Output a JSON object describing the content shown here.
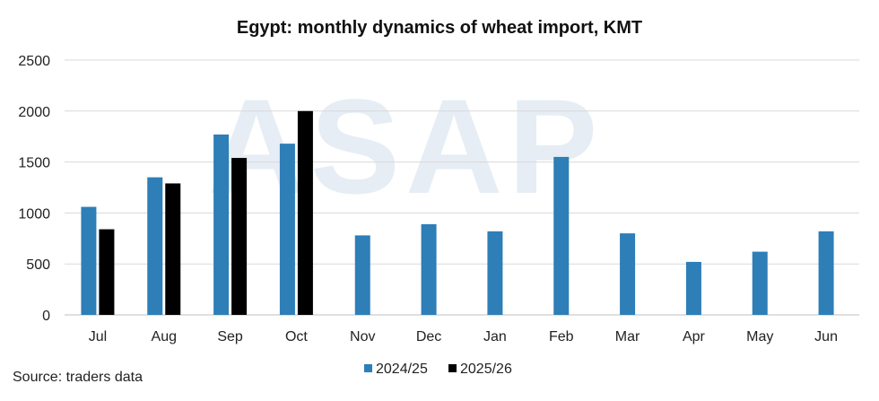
{
  "chart_data": {
    "type": "bar",
    "title": "Egypt: monthly dynamics of wheat import, KMT",
    "xlabel": "",
    "ylabel": "",
    "categories": [
      "Jul",
      "Aug",
      "Sep",
      "Oct",
      "Nov",
      "Dec",
      "Jan",
      "Feb",
      "Mar",
      "Apr",
      "May",
      "Jun"
    ],
    "series": [
      {
        "name": "2024/25",
        "color": "#2e7eb8",
        "values": [
          1060,
          1350,
          1770,
          1680,
          780,
          890,
          820,
          1550,
          800,
          520,
          620,
          820
        ]
      },
      {
        "name": "2025/26",
        "color": "#000000",
        "values": [
          840,
          1290,
          1540,
          2000,
          null,
          null,
          null,
          null,
          null,
          null,
          null,
          null
        ]
      }
    ],
    "ylim": [
      0,
      2500
    ],
    "yticks": [
      0,
      500,
      1000,
      1500,
      2000,
      2500
    ],
    "grid": true,
    "legend": "bottom"
  },
  "source": "Source: traders data",
  "watermark": "ASAP"
}
